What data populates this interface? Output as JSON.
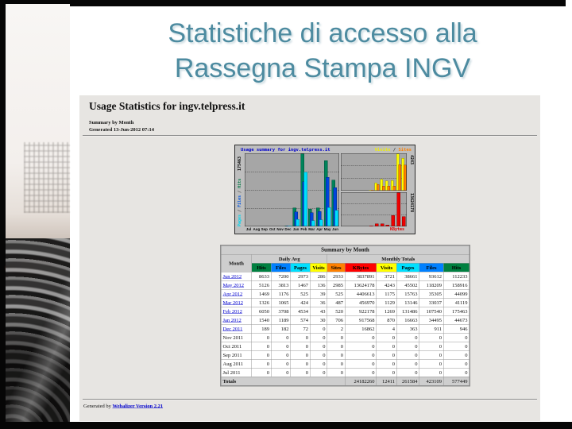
{
  "slide": {
    "title_line1": "Statistiche di accesso alla",
    "title_line2": "Rassegna Stampa INGV",
    "title_color": "#4d8ba0"
  },
  "webalizer": {
    "page_title": "Usage Statistics for ingv.telpress.it",
    "subtitle1": "Summary by Month",
    "subtitle2": "Generated 13-Jun-2012 07:14",
    "footer_prefix": "Generated by",
    "footer_link": "Webalizer Version 2.21"
  },
  "chart_data": {
    "type": "bar",
    "title": "Usage summary for ingv.telpress.it",
    "categories": [
      "Jul",
      "Aug",
      "Sep",
      "Oct",
      "Nov",
      "Dec",
      "Jan",
      "Feb",
      "Mar",
      "Apr",
      "May",
      "Jun"
    ],
    "legend": [
      {
        "text": "Visits",
        "color": "#f0f000"
      },
      {
        "text": "Sites",
        "color": "#ff8000"
      }
    ],
    "legend_separator": " / ",
    "left_panel": {
      "max": 175463,
      "axis_label": "175463",
      "separator": " / ",
      "side_labels": [
        {
          "text": "Pages",
          "color": "#00d8f0"
        },
        {
          "text": "Files",
          "color": "#0055e0"
        },
        {
          "text": "Hits",
          "color": "#007a44"
        }
      ],
      "series": [
        {
          "name": "Hits",
          "color": "#00835a",
          "values": [
            0,
            0,
            0,
            0,
            0,
            946,
            44673,
            175463,
            41119,
            44099,
            158916,
            112233
          ]
        },
        {
          "name": "Files",
          "color": "#0044dd",
          "values": [
            0,
            0,
            0,
            0,
            0,
            911,
            34495,
            107540,
            33037,
            35305,
            118209,
            93612
          ]
        },
        {
          "name": "Pages",
          "color": "#00e0ff",
          "values": [
            0,
            0,
            0,
            0,
            0,
            363,
            16663,
            131486,
            13146,
            15763,
            45502,
            38661
          ]
        }
      ]
    },
    "right_top_panel": {
      "max": 4243,
      "axis_label": "4243",
      "series": [
        {
          "name": "Visits",
          "color": "#ffff00",
          "values": [
            0,
            0,
            0,
            0,
            0,
            4,
            870,
            1269,
            1129,
            1175,
            4243,
            3721
          ]
        },
        {
          "name": "Sites",
          "color": "#ff8000",
          "values": [
            0,
            0,
            0,
            0,
            0,
            2,
            706,
            520,
            487,
            525,
            2985,
            2933
          ]
        }
      ]
    },
    "right_bottom_panel": {
      "max": 13624178,
      "axis_label": "13624178",
      "label": "KBytes",
      "series": [
        {
          "name": "KBytes",
          "color": "#ee0000",
          "values": [
            0,
            0,
            0,
            0,
            0,
            16862,
            917568,
            922178,
            456970,
            4406613,
            13624178,
            3837891
          ]
        }
      ]
    }
  },
  "table": {
    "title": "Summary by Month",
    "month_header": "Month",
    "group_headers": [
      "Daily Avg",
      "Monthly Totals"
    ],
    "col_headers": [
      {
        "label": "Hits",
        "bg": "#008040"
      },
      {
        "label": "Files",
        "bg": "#0080ff"
      },
      {
        "label": "Pages",
        "bg": "#00e0ff"
      },
      {
        "label": "Visits",
        "bg": "#ffff00"
      },
      {
        "label": "Sites",
        "bg": "#ff8000"
      },
      {
        "label": "KBytes",
        "bg": "#ff0000"
      },
      {
        "label": "Visits",
        "bg": "#ffff00"
      },
      {
        "label": "Pages",
        "bg": "#00e0ff"
      },
      {
        "label": "Files",
        "bg": "#0080ff"
      },
      {
        "label": "Hits",
        "bg": "#008040"
      }
    ],
    "rows": [
      {
        "month": "Jun 2012",
        "link": true,
        "values": [
          "8633",
          "7200",
          "2973",
          "286",
          "2933",
          "3837891",
          "3721",
          "38661",
          "93612",
          "112233"
        ]
      },
      {
        "month": "May 2012",
        "link": true,
        "values": [
          "5126",
          "3813",
          "1467",
          "136",
          "2985",
          "13624178",
          "4243",
          "45502",
          "118209",
          "158916"
        ]
      },
      {
        "month": "Apr 2012",
        "link": true,
        "values": [
          "1469",
          "1176",
          "525",
          "39",
          "525",
          "4406613",
          "1175",
          "15763",
          "35305",
          "44099"
        ]
      },
      {
        "month": "Mar 2012",
        "link": true,
        "values": [
          "1326",
          "1065",
          "424",
          "36",
          "487",
          "456970",
          "1129",
          "13146",
          "33037",
          "41119"
        ]
      },
      {
        "month": "Feb 2012",
        "link": true,
        "values": [
          "6050",
          "3708",
          "4534",
          "43",
          "520",
          "922178",
          "1269",
          "131486",
          "107540",
          "175463"
        ]
      },
      {
        "month": "Jan 2012",
        "link": true,
        "values": [
          "1540",
          "1189",
          "574",
          "30",
          "706",
          "917568",
          "870",
          "16663",
          "34495",
          "44673"
        ]
      },
      {
        "month": "Dec 2011",
        "link": true,
        "values": [
          "189",
          "182",
          "72",
          "0",
          "2",
          "16862",
          "4",
          "363",
          "911",
          "946"
        ]
      },
      {
        "month": "Nov 2011",
        "link": false,
        "values": [
          "0",
          "0",
          "0",
          "0",
          "0",
          "0",
          "0",
          "0",
          "0",
          "0"
        ]
      },
      {
        "month": "Oct 2011",
        "link": false,
        "values": [
          "0",
          "0",
          "0",
          "0",
          "0",
          "0",
          "0",
          "0",
          "0",
          "0"
        ]
      },
      {
        "month": "Sep 2011",
        "link": false,
        "values": [
          "0",
          "0",
          "0",
          "0",
          "0",
          "0",
          "0",
          "0",
          "0",
          "0"
        ]
      },
      {
        "month": "Aug 2011",
        "link": false,
        "values": [
          "0",
          "0",
          "0",
          "0",
          "0",
          "0",
          "0",
          "0",
          "0",
          "0"
        ]
      },
      {
        "month": "Jul 2011",
        "link": false,
        "values": [
          "0",
          "0",
          "0",
          "0",
          "0",
          "0",
          "0",
          "0",
          "0",
          "0"
        ]
      }
    ],
    "totals": {
      "label": "Totals",
      "values": [
        "24182260",
        "12411",
        "261584",
        "423109",
        "577449"
      ]
    }
  }
}
